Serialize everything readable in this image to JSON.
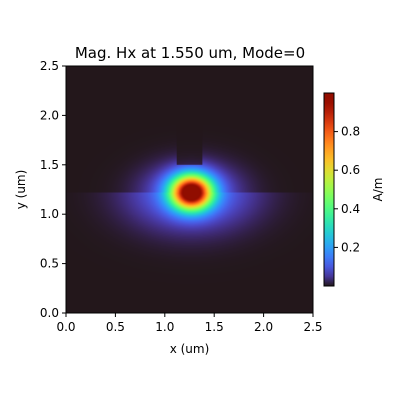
{
  "chart_data": {
    "type": "heatmap",
    "title": "Mag. Hx at 1.550 um, Mode=0",
    "xlabel": "x (um)",
    "ylabel": "y (um)",
    "xlim": [
      0,
      2.5
    ],
    "ylim": [
      0,
      2.5
    ],
    "x_ticks": [
      0.0,
      0.5,
      1.0,
      1.5,
      2.0,
      2.5
    ],
    "x_tick_labels": [
      "0.0",
      "0.5",
      "1.0",
      "1.5",
      "2.0",
      "2.5"
    ],
    "y_ticks": [
      0.0,
      0.5,
      1.0,
      1.5,
      2.0,
      2.5
    ],
    "y_tick_labels": [
      "0.0",
      "0.5",
      "1.0",
      "1.5",
      "2.0",
      "2.5"
    ],
    "colormap": "turbo",
    "colorbar": {
      "label": "A/m",
      "range": [
        0.0,
        1.0
      ],
      "ticks": [
        0.2,
        0.4,
        0.6,
        0.8
      ],
      "tick_labels": [
        "0.2",
        "0.4",
        "0.6",
        "0.8"
      ]
    },
    "field": {
      "peak_value": 1.0,
      "peak_center_um": [
        1.27,
        1.22
      ],
      "mode_half_width_x_um": 0.2,
      "mode_half_height_y_um": 0.17,
      "core_top_um": 1.5,
      "core_top_x_range_um": [
        1.12,
        1.38
      ]
    }
  }
}
